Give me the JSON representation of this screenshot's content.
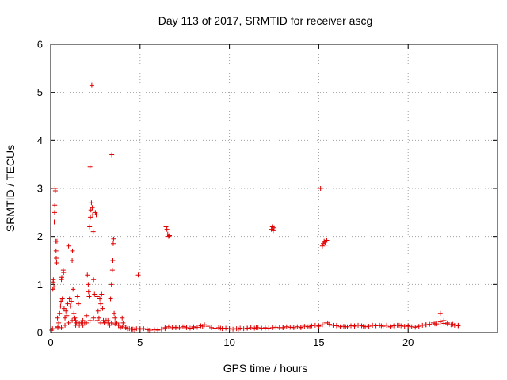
{
  "chart_data": {
    "type": "scatter",
    "title": "Day 113 of 2017, SRMTID for receiver ascg",
    "xlabel": "GPS time / hours",
    "ylabel": "SRMTID / TECUs",
    "xlim": [
      0,
      25
    ],
    "ylim": [
      0,
      6
    ],
    "xticks": [
      0,
      5,
      10,
      15,
      20
    ],
    "yticks": [
      0,
      1,
      2,
      3,
      4,
      5,
      6
    ],
    "grid": true,
    "marker": "plus",
    "color": "#e00000",
    "series": [
      {
        "name": "SRMTID",
        "points": [
          [
            0.05,
            0.05
          ],
          [
            0.1,
            0.08
          ],
          [
            0.12,
            0.9
          ],
          [
            0.14,
            1.05
          ],
          [
            0.15,
            1.1
          ],
          [
            0.18,
            0.95
          ],
          [
            0.2,
            2.3
          ],
          [
            0.22,
            2.5
          ],
          [
            0.23,
            2.65
          ],
          [
            0.24,
            3.0
          ],
          [
            0.26,
            2.95
          ],
          [
            0.28,
            1.9
          ],
          [
            0.3,
            1.7
          ],
          [
            0.31,
            1.55
          ],
          [
            0.33,
            1.45
          ],
          [
            0.35,
            1.9
          ],
          [
            0.38,
            0.3
          ],
          [
            0.4,
            0.1
          ],
          [
            0.45,
            0.2
          ],
          [
            0.5,
            0.4
          ],
          [
            0.55,
            0.55
          ],
          [
            0.58,
            0.65
          ],
          [
            0.6,
            1.1
          ],
          [
            0.62,
            1.15
          ],
          [
            0.65,
            0.7
          ],
          [
            0.7,
            1.3
          ],
          [
            0.72,
            1.25
          ],
          [
            0.75,
            0.5
          ],
          [
            0.8,
            0.3
          ],
          [
            0.85,
            0.45
          ],
          [
            0.9,
            0.35
          ],
          [
            0.95,
            0.6
          ],
          [
            1.0,
            1.8
          ],
          [
            1.05,
            0.7
          ],
          [
            1.1,
            0.55
          ],
          [
            1.15,
            0.65
          ],
          [
            1.2,
            1.5
          ],
          [
            1.22,
            1.7
          ],
          [
            1.25,
            0.9
          ],
          [
            1.3,
            0.4
          ],
          [
            1.35,
            0.3
          ],
          [
            1.4,
            0.25
          ],
          [
            1.45,
            0.2
          ],
          [
            1.5,
            0.75
          ],
          [
            1.55,
            0.6
          ],
          [
            1.6,
            0.15
          ],
          [
            1.7,
            0.2
          ],
          [
            1.8,
            0.25
          ],
          [
            1.9,
            0.2
          ],
          [
            2.0,
            0.35
          ],
          [
            2.05,
            1.2
          ],
          [
            2.1,
            1.0
          ],
          [
            2.12,
            0.85
          ],
          [
            2.15,
            0.75
          ],
          [
            2.18,
            2.2
          ],
          [
            2.2,
            3.45
          ],
          [
            2.22,
            2.4
          ],
          [
            2.25,
            2.55
          ],
          [
            2.28,
            2.7
          ],
          [
            2.3,
            5.15
          ],
          [
            2.33,
            2.6
          ],
          [
            2.35,
            2.45
          ],
          [
            2.38,
            2.1
          ],
          [
            2.4,
            1.1
          ],
          [
            2.45,
            0.8
          ],
          [
            2.5,
            2.5
          ],
          [
            2.55,
            2.45
          ],
          [
            2.6,
            0.75
          ],
          [
            2.65,
            0.45
          ],
          [
            2.7,
            0.3
          ],
          [
            2.75,
            0.7
          ],
          [
            2.8,
            0.6
          ],
          [
            2.85,
            0.8
          ],
          [
            2.9,
            0.5
          ],
          [
            2.95,
            0.25
          ],
          [
            3.0,
            0.2
          ],
          [
            3.1,
            0.25
          ],
          [
            3.2,
            0.2
          ],
          [
            3.3,
            0.15
          ],
          [
            3.35,
            0.7
          ],
          [
            3.4,
            1.0
          ],
          [
            3.42,
            3.7
          ],
          [
            3.45,
            1.3
          ],
          [
            3.48,
            1.5
          ],
          [
            3.5,
            1.85
          ],
          [
            3.52,
            1.95
          ],
          [
            3.55,
            0.4
          ],
          [
            3.6,
            0.3
          ],
          [
            3.7,
            0.2
          ],
          [
            3.8,
            0.15
          ],
          [
            3.9,
            0.1
          ],
          [
            4.0,
            0.3
          ],
          [
            4.05,
            0.2
          ],
          [
            4.1,
            0.15
          ],
          [
            4.2,
            0.1
          ],
          [
            4.3,
            0.08
          ],
          [
            4.5,
            0.07
          ],
          [
            4.7,
            0.06
          ],
          [
            4.9,
            1.2
          ],
          [
            5.0,
            0.08
          ],
          [
            5.5,
            0.05
          ],
          [
            6.0,
            0.06
          ],
          [
            6.4,
            0.1
          ],
          [
            6.45,
            2.2
          ],
          [
            6.5,
            2.15
          ],
          [
            6.55,
            2.05
          ],
          [
            6.6,
            2.0
          ],
          [
            6.65,
            2.02
          ],
          [
            7.0,
            0.1
          ],
          [
            7.5,
            0.12
          ],
          [
            8.0,
            0.1
          ],
          [
            8.5,
            0.13
          ],
          [
            9.0,
            0.1
          ],
          [
            9.5,
            0.09
          ],
          [
            10.0,
            0.08
          ],
          [
            10.5,
            0.07
          ],
          [
            11.0,
            0.09
          ],
          [
            11.5,
            0.1
          ],
          [
            12.0,
            0.09
          ],
          [
            12.35,
            2.15
          ],
          [
            12.4,
            2.2
          ],
          [
            12.45,
            2.12
          ],
          [
            12.5,
            2.18
          ],
          [
            13.0,
            0.1
          ],
          [
            13.5,
            0.11
          ],
          [
            14.0,
            0.1
          ],
          [
            14.5,
            0.12
          ],
          [
            15.0,
            0.13
          ],
          [
            15.1,
            3.0
          ],
          [
            15.2,
            1.8
          ],
          [
            15.25,
            1.85
          ],
          [
            15.3,
            1.9
          ],
          [
            15.35,
            1.88
          ],
          [
            15.4,
            1.82
          ],
          [
            15.45,
            1.92
          ],
          [
            15.5,
            0.2
          ],
          [
            16.0,
            0.15
          ],
          [
            16.5,
            0.12
          ],
          [
            17.0,
            0.14
          ],
          [
            17.5,
            0.13
          ],
          [
            18.0,
            0.15
          ],
          [
            18.5,
            0.14
          ],
          [
            19.0,
            0.12
          ],
          [
            19.5,
            0.15
          ],
          [
            20.0,
            0.14
          ],
          [
            20.5,
            0.12
          ],
          [
            21.0,
            0.16
          ],
          [
            21.5,
            0.18
          ],
          [
            21.8,
            0.4
          ],
          [
            22.0,
            0.25
          ],
          [
            22.2,
            0.2
          ],
          [
            22.5,
            0.17
          ],
          [
            22.8,
            0.15
          ]
        ],
        "baseline": [
          [
            0.4,
            0.12
          ],
          [
            0.6,
            0.1
          ],
          [
            0.8,
            0.15
          ],
          [
            1.0,
            0.2
          ],
          [
            1.2,
            0.25
          ],
          [
            1.4,
            0.15
          ],
          [
            1.6,
            0.2
          ],
          [
            1.8,
            0.15
          ],
          [
            2.0,
            0.2
          ],
          [
            2.2,
            0.25
          ],
          [
            2.4,
            0.3
          ],
          [
            2.6,
            0.25
          ],
          [
            2.8,
            0.2
          ],
          [
            3.0,
            0.2
          ],
          [
            3.2,
            0.25
          ],
          [
            3.4,
            0.2
          ],
          [
            3.6,
            0.18
          ],
          [
            3.8,
            0.15
          ],
          [
            4.0,
            0.12
          ],
          [
            4.2,
            0.1
          ],
          [
            4.4,
            0.08
          ],
          [
            4.6,
            0.07
          ],
          [
            4.8,
            0.08
          ],
          [
            5.0,
            0.07
          ],
          [
            5.2,
            0.08
          ],
          [
            5.4,
            0.06
          ],
          [
            5.6,
            0.05
          ],
          [
            5.8,
            0.06
          ],
          [
            6.0,
            0.05
          ],
          [
            6.2,
            0.07
          ],
          [
            6.4,
            0.08
          ],
          [
            6.6,
            0.12
          ],
          [
            6.8,
            0.1
          ],
          [
            7.0,
            0.11
          ],
          [
            7.2,
            0.1
          ],
          [
            7.4,
            0.12
          ],
          [
            7.6,
            0.1
          ],
          [
            7.8,
            0.09
          ],
          [
            8.0,
            0.12
          ],
          [
            8.2,
            0.11
          ],
          [
            8.4,
            0.14
          ],
          [
            8.6,
            0.16
          ],
          [
            8.8,
            0.13
          ],
          [
            9.0,
            0.1
          ],
          [
            9.2,
            0.09
          ],
          [
            9.4,
            0.1
          ],
          [
            9.6,
            0.08
          ],
          [
            9.8,
            0.09
          ],
          [
            10.0,
            0.08
          ],
          [
            10.2,
            0.07
          ],
          [
            10.4,
            0.08
          ],
          [
            10.6,
            0.09
          ],
          [
            10.8,
            0.08
          ],
          [
            11.0,
            0.09
          ],
          [
            11.2,
            0.1
          ],
          [
            11.4,
            0.09
          ],
          [
            11.6,
            0.1
          ],
          [
            11.8,
            0.09
          ],
          [
            12.0,
            0.1
          ],
          [
            12.2,
            0.09
          ],
          [
            12.4,
            0.1
          ],
          [
            12.6,
            0.11
          ],
          [
            12.8,
            0.1
          ],
          [
            13.0,
            0.1
          ],
          [
            13.2,
            0.12
          ],
          [
            13.4,
            0.11
          ],
          [
            13.6,
            0.1
          ],
          [
            13.8,
            0.12
          ],
          [
            14.0,
            0.11
          ],
          [
            14.2,
            0.13
          ],
          [
            14.4,
            0.12
          ],
          [
            14.6,
            0.14
          ],
          [
            14.8,
            0.15
          ],
          [
            15.0,
            0.14
          ],
          [
            15.2,
            0.16
          ],
          [
            15.4,
            0.2
          ],
          [
            15.6,
            0.17
          ],
          [
            15.8,
            0.15
          ],
          [
            16.0,
            0.14
          ],
          [
            16.2,
            0.12
          ],
          [
            16.4,
            0.13
          ],
          [
            16.6,
            0.12
          ],
          [
            16.8,
            0.14
          ],
          [
            17.0,
            0.13
          ],
          [
            17.2,
            0.15
          ],
          [
            17.4,
            0.14
          ],
          [
            17.6,
            0.12
          ],
          [
            17.8,
            0.13
          ],
          [
            18.0,
            0.15
          ],
          [
            18.2,
            0.14
          ],
          [
            18.4,
            0.15
          ],
          [
            18.6,
            0.13
          ],
          [
            18.8,
            0.15
          ],
          [
            19.0,
            0.12
          ],
          [
            19.2,
            0.14
          ],
          [
            19.4,
            0.15
          ],
          [
            19.6,
            0.14
          ],
          [
            19.8,
            0.13
          ],
          [
            20.0,
            0.13
          ],
          [
            20.2,
            0.12
          ],
          [
            20.4,
            0.11
          ],
          [
            20.6,
            0.13
          ],
          [
            20.8,
            0.15
          ],
          [
            21.0,
            0.16
          ],
          [
            21.2,
            0.17
          ],
          [
            21.4,
            0.2
          ],
          [
            21.6,
            0.18
          ],
          [
            21.8,
            0.22
          ],
          [
            22.0,
            0.19
          ],
          [
            22.2,
            0.18
          ],
          [
            22.4,
            0.16
          ],
          [
            22.6,
            0.15
          ],
          [
            22.8,
            0.14
          ]
        ]
      }
    ]
  }
}
